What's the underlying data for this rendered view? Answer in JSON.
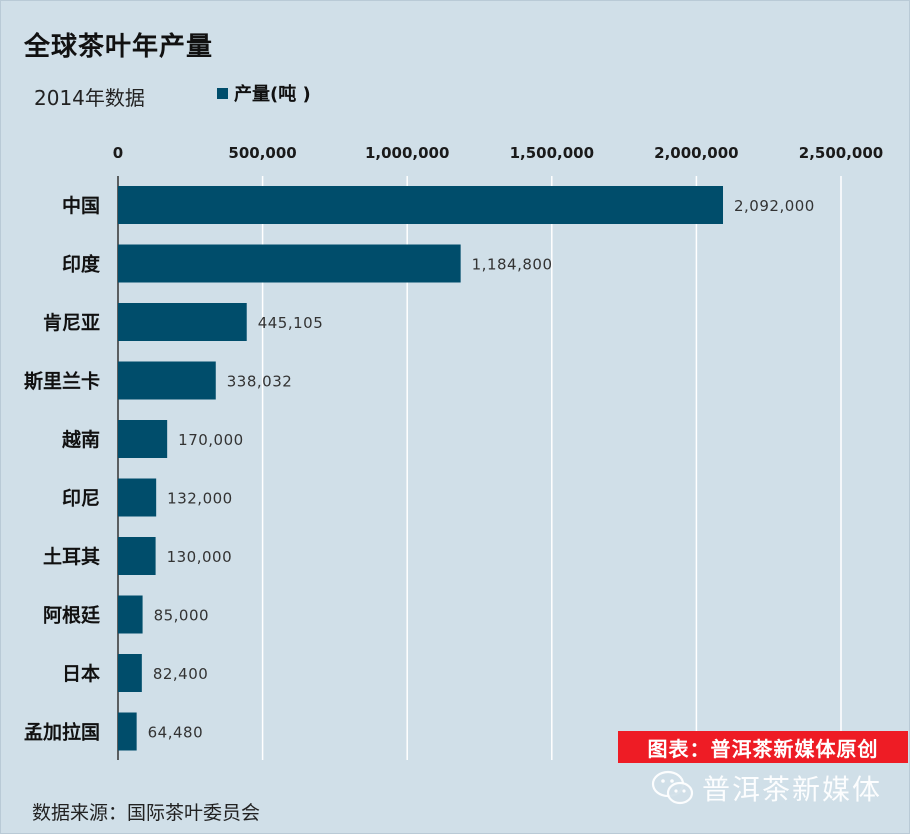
{
  "chart_data": {
    "type": "bar",
    "orientation": "horizontal",
    "title": "全球茶叶年产量",
    "subtitle": "2014年数据",
    "legend": {
      "label": "产量(吨 )",
      "color": "#004d6b",
      "placement": "top"
    },
    "categories": [
      "中国",
      "印度",
      "肯尼亚",
      "斯里兰卡",
      "越南",
      "印尼",
      "土耳其",
      "阿根廷",
      "日本",
      "孟加拉国"
    ],
    "values": [
      2092000,
      1184800,
      445105,
      338032,
      170000,
      132000,
      130000,
      85000,
      82400,
      64480
    ],
    "value_labels": [
      "2,092,000",
      "1,184,800",
      "445,105",
      "338,032",
      "170,000",
      "132,000",
      "130,000",
      "85,000",
      "82,400",
      "64,480"
    ],
    "x_ticks": [
      0,
      500000,
      1000000,
      1500000,
      2000000,
      2500000
    ],
    "x_tick_labels": [
      "0",
      "500,000",
      "1,000,000",
      "1,500,000",
      "2,000,000",
      "2,500,000"
    ],
    "xlim": [
      0,
      2500000
    ],
    "x_axis_position": "top",
    "grid": true,
    "bar_color": "#004d6b"
  },
  "footer": {
    "source": "数据来源：国际茶叶委员会",
    "badge": "图表：普洱茶新媒体原创",
    "watermark": "普洱茶新媒体",
    "badge_color": "#ee1c25"
  },
  "icons": {
    "watermark_icon": "wechat-icon"
  }
}
